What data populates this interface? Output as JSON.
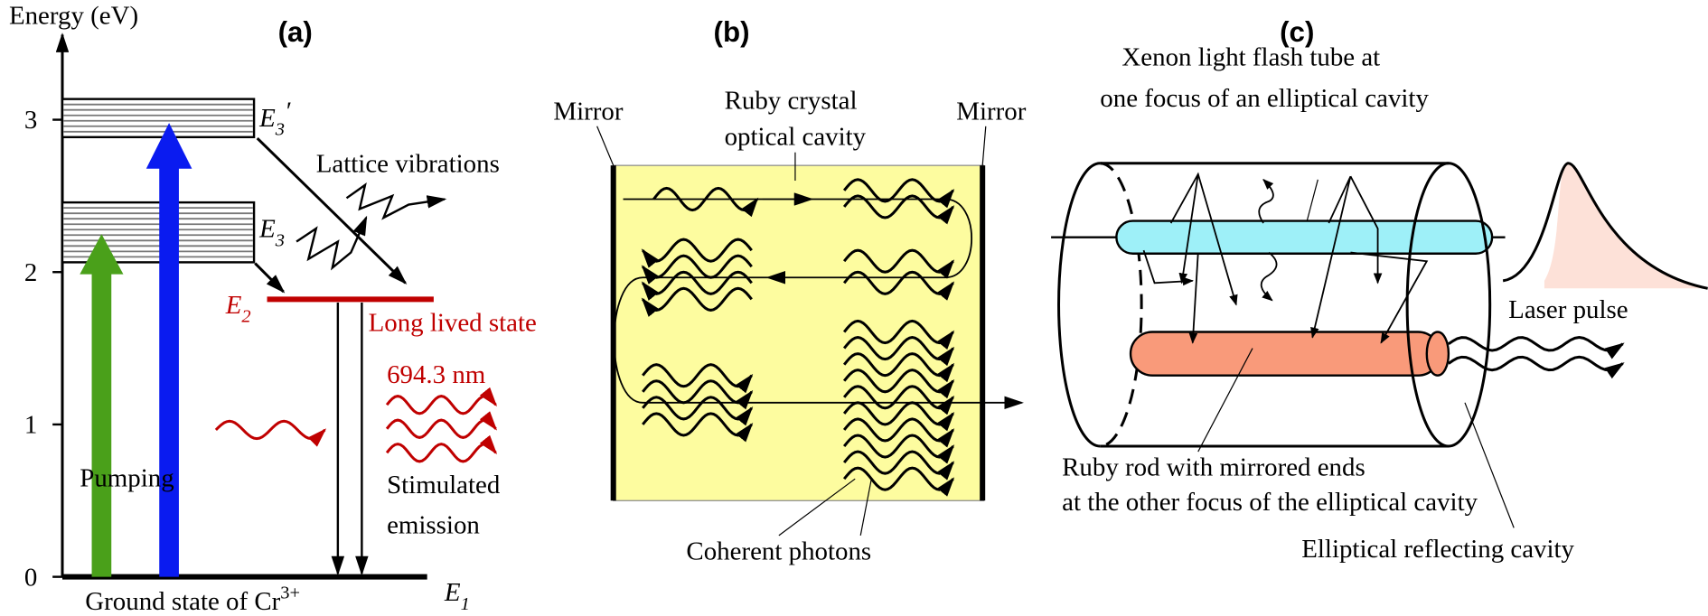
{
  "panel_a": {
    "label": "(a)",
    "axis_title": "Energy (eV)",
    "ticks": [
      0,
      1,
      2,
      3
    ],
    "levels": {
      "e3p": {
        "symbol": "E",
        "sub": "3",
        "prime": "′"
      },
      "e3": {
        "symbol": "E",
        "sub": "3"
      },
      "e2": {
        "symbol": "E",
        "sub": "2"
      },
      "e1": {
        "symbol": "E",
        "sub": "1"
      }
    },
    "lattice": "Lattice vibrations",
    "long_lived": "Long lived state",
    "wavelength": "694.3 nm",
    "pumping": "Pumping",
    "stimulated": [
      "Stimulated",
      "emission"
    ],
    "ground": {
      "text": "Ground state of Cr",
      "sup": "3+"
    }
  },
  "panel_b": {
    "label": "(b)",
    "mirror_left": "Mirror",
    "mirror_right": "Mirror",
    "cavity": [
      "Ruby crystal",
      "optical cavity"
    ],
    "photons": "Coherent photons"
  },
  "panel_c": {
    "label": "(c)",
    "flash_tube": [
      "Xenon light flash tube at",
      "one focus of an elliptical cavity"
    ],
    "laser_pulse": "Laser pulse",
    "ruby_rod": [
      "Ruby rod with mirrored ends",
      "at the other focus of the elliptical cavity"
    ],
    "reflector": "Elliptical reflecting cavity"
  }
}
